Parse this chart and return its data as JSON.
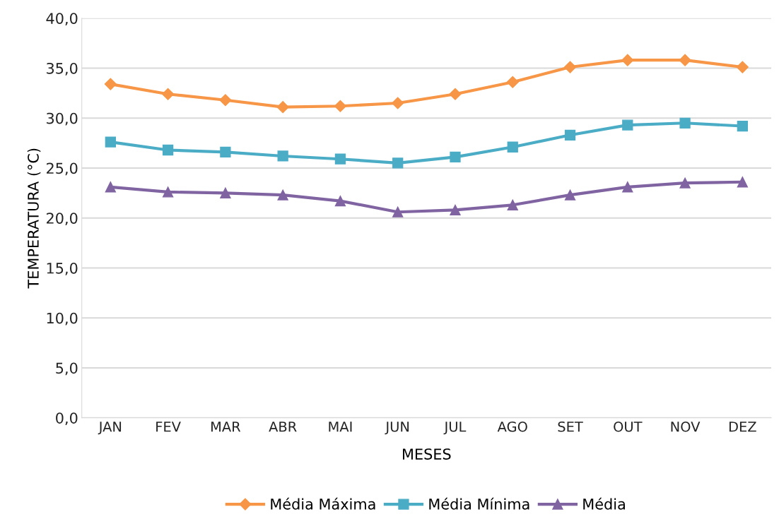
{
  "chart_data": {
    "type": "line",
    "xlabel": "MESES",
    "ylabel": "TEMPERATURA (°C)",
    "categories": [
      "JAN",
      "FEV",
      "MAR",
      "ABR",
      "MAI",
      "JUN",
      "JUL",
      "AGO",
      "SET",
      "OUT",
      "NOV",
      "DEZ"
    ],
    "series": [
      {
        "name": "Média Máxima",
        "color": "#f79646",
        "marker": "diamond",
        "values": [
          33.4,
          32.4,
          31.8,
          31.1,
          31.2,
          31.5,
          32.4,
          33.6,
          35.1,
          35.8,
          35.8,
          35.1
        ]
      },
      {
        "name": "Média Mínima",
        "color": "#4bacc6",
        "marker": "square",
        "values": [
          27.6,
          26.8,
          26.6,
          26.2,
          25.9,
          25.5,
          26.1,
          27.1,
          28.3,
          29.3,
          29.5,
          29.2
        ]
      },
      {
        "name": "Média",
        "color": "#8064a2",
        "marker": "triangle",
        "values": [
          23.1,
          22.6,
          22.5,
          22.3,
          21.7,
          20.6,
          20.8,
          21.3,
          22.3,
          23.1,
          23.5,
          23.6
        ]
      }
    ],
    "ylim": [
      0,
      40
    ],
    "yticks": [
      {
        "value": 0,
        "label": "0,0"
      },
      {
        "value": 5,
        "label": "5,0"
      },
      {
        "value": 10,
        "label": "10,0"
      },
      {
        "value": 15,
        "label": "15,0"
      },
      {
        "value": 20,
        "label": "20,0"
      },
      {
        "value": 25,
        "label": "25,0"
      },
      {
        "value": 30,
        "label": "30,0"
      },
      {
        "value": 35,
        "label": "35,0"
      },
      {
        "value": 40,
        "label": "40,0"
      }
    ],
    "grid": "y",
    "legend": "bottom",
    "line_style": "solid"
  }
}
